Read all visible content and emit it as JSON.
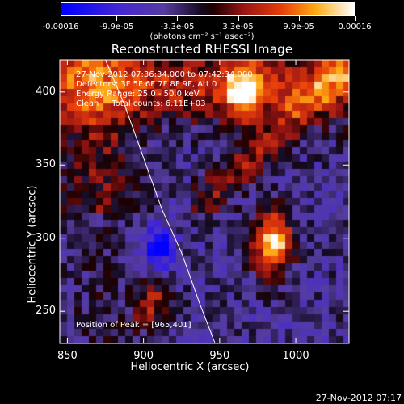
{
  "colorbar": {
    "tick_labels": [
      "-0.00016",
      "-9.9e-05",
      "-3.3e-05",
      "3.3e-05",
      "9.9e-05",
      "0.00016"
    ],
    "units": "(photons cm⁻² s⁻¹ asec⁻²)",
    "range": [
      -0.00016,
      0.00016
    ]
  },
  "annotations": {
    "time_range": "27-Nov-2012 07:36:34.000 to 07:42:34.000",
    "detectors": "Detectors: 3F 5F 6F 7F 8F 9F, Att 0",
    "energy": "Energy Range: 25.0 - 50.0 keV",
    "algo": "Clean     Total counts: 6.11E+03",
    "peak": "Position of Peak = [965,401]"
  },
  "footer_timestamp": "27-Nov-2012 07:17",
  "chart_data": {
    "type": "heatmap",
    "title": "Reconstructed RHESSI Image",
    "xlabel": "Heliocentric X (arcsec)",
    "ylabel": "Heliocentric Y (arcsec)",
    "xlim": [
      845,
      1035
    ],
    "ylim": [
      228,
      422
    ],
    "x_ticks": [
      "850",
      "900",
      "950",
      "1000"
    ],
    "x_tick_values": [
      850,
      900,
      950,
      1000
    ],
    "y_ticks": [
      "250",
      "300",
      "350",
      "400"
    ],
    "y_tick_values": [
      250,
      300,
      350,
      400
    ],
    "colormap": "blue-purple-black-red-yellow-white",
    "limb_curve": {
      "x": [
        875,
        888,
        900,
        912,
        925,
        937,
        947
      ],
      "y": [
        422,
        390,
        355,
        320,
        290,
        255,
        228
      ]
    },
    "peak": {
      "x": 965,
      "y": 401
    },
    "features": [
      {
        "label": "bright source top",
        "x": 965,
        "y": 401,
        "value": 0.00016
      },
      {
        "label": "source right",
        "x": 985,
        "y": 295,
        "value": 0.00013
      },
      {
        "label": "source lower-left",
        "x": 905,
        "y": 255,
        "value": 0.0001
      },
      {
        "label": "negative minimum",
        "x": 910,
        "y": 293,
        "value": -0.00013
      }
    ]
  },
  "colors": {
    "background": "#000000",
    "foreground": "#ffffff"
  }
}
